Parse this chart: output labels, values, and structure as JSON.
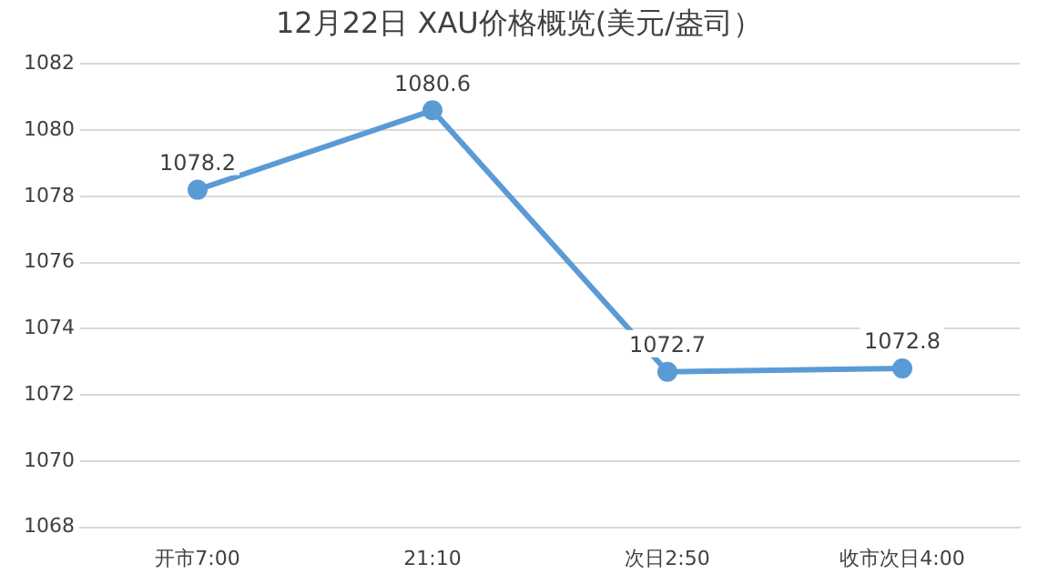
{
  "chart_data": {
    "type": "line",
    "title": "12月22日 XAU价格概览(美元/盎司）",
    "categories": [
      "开市7:00",
      "21:10",
      "次日2:50",
      "收市次日4:00"
    ],
    "series": [
      {
        "color": "#5b9bd5",
        "values": [
          1078.2,
          1080.6,
          1072.7,
          1072.8
        ]
      }
    ],
    "ylim": [
      1068,
      1082
    ],
    "yticks": [
      1068,
      1070,
      1072,
      1074,
      1076,
      1078,
      1080,
      1082
    ],
    "grid": "y",
    "legend": false,
    "marker": "circle",
    "data_labels": true
  }
}
